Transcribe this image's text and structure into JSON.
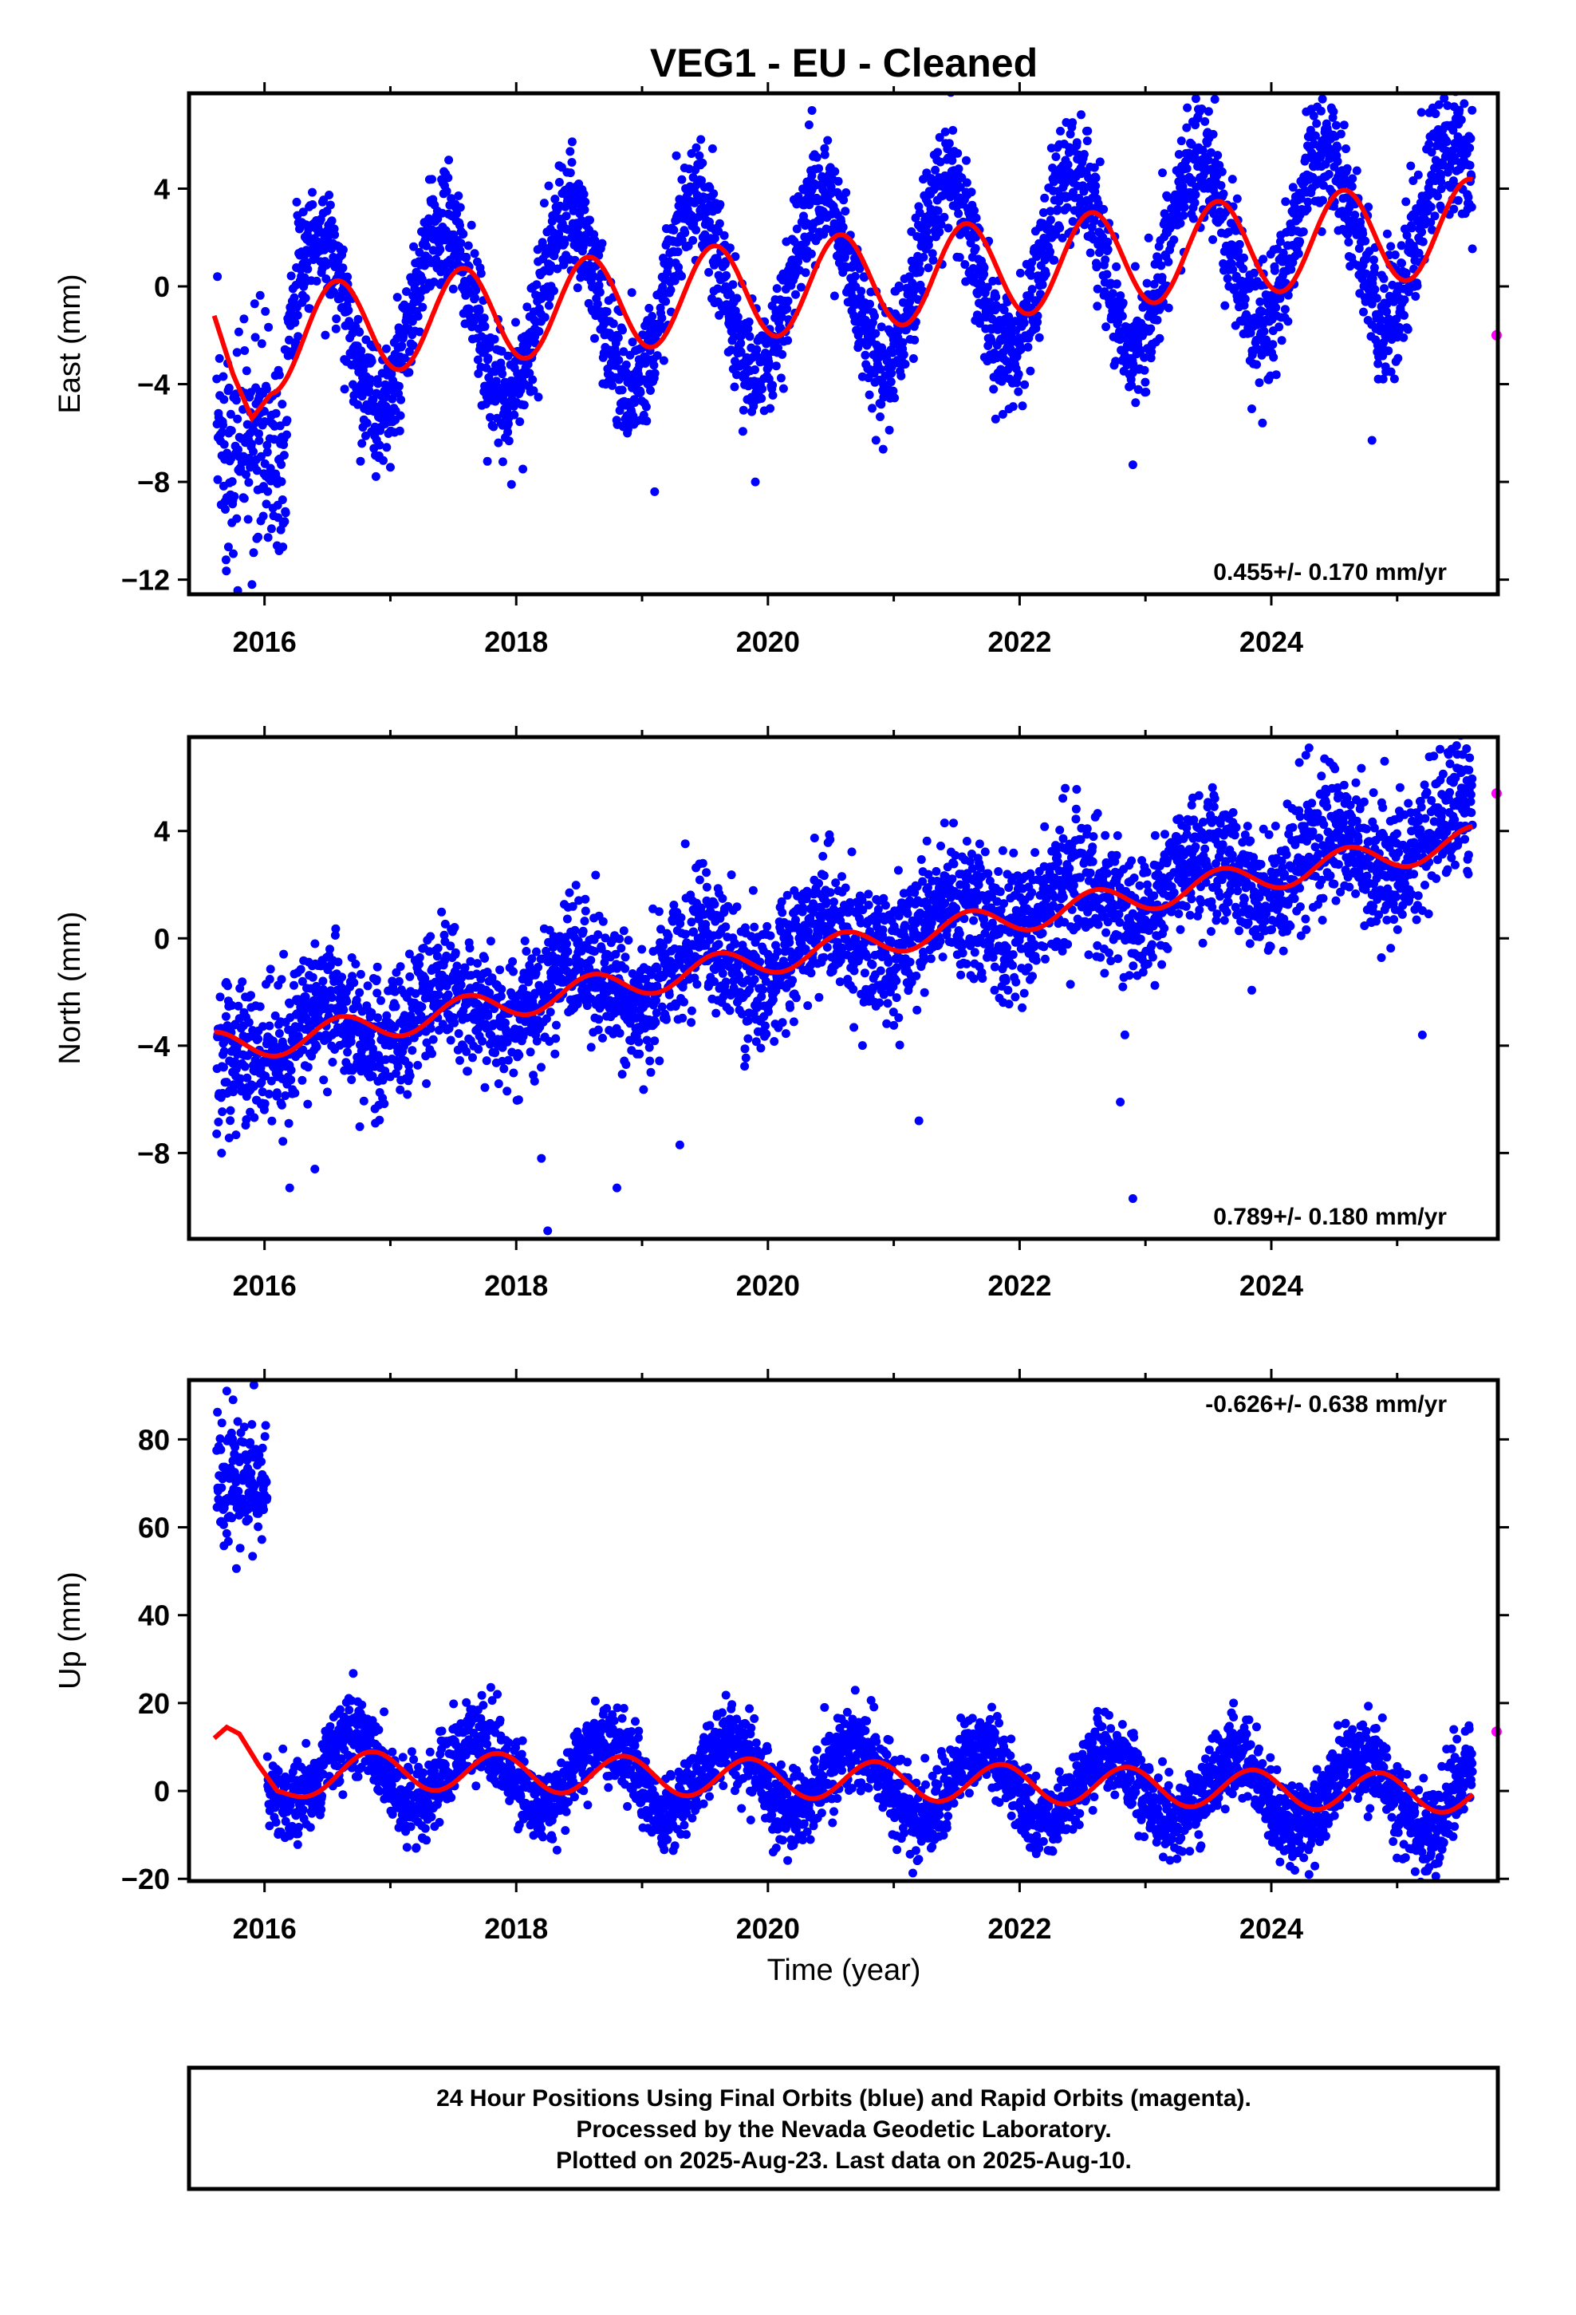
{
  "title": "VEG1  - EU - Cleaned",
  "colors": {
    "final_orbits": "#0000ff",
    "rapid_orbits": "#ff00ff",
    "model": "#ff0000",
    "frame": "#000000"
  },
  "x_axis": {
    "label": "Time (year)",
    "range": [
      2015.4,
      2025.8
    ],
    "ticks": [
      2016,
      2018,
      2020,
      2022,
      2024
    ],
    "tick_labels": [
      "2016",
      "2018",
      "2020",
      "2022",
      "2024"
    ]
  },
  "footer": {
    "lines": [
      "24 Hour Positions Using Final Orbits (blue) and Rapid Orbits (magenta).",
      "Processed by the Nevada Geodetic Laboratory.",
      "Plotted on 2025-Aug-23. Last data on 2025-Aug-10."
    ]
  },
  "chart_data": [
    {
      "type": "scatter",
      "component": "east",
      "ylabel": "East (mm)",
      "ylim": [
        -12.6,
        7.9
      ],
      "yticks": [
        -12,
        -8,
        -4,
        0,
        4
      ],
      "ytick_labels": [
        "−12",
        "−8",
        "−4",
        "0",
        "4"
      ],
      "rate": "0.455+/- 0.170 mm/yr",
      "rate_position": "bottom-right",
      "model": {
        "t0": 2015.6,
        "t1": 2025.6,
        "offset_at_2020": 0.0,
        "trend": 0.455,
        "annual_amp": 3.6,
        "annual_peak": 0.42,
        "early_curve": [
          [
            2015.6,
            -1.2
          ],
          [
            2015.75,
            -3.6
          ],
          [
            2015.9,
            -5.4
          ],
          [
            2016.05,
            -4.4
          ]
        ]
      },
      "scatter_spread": 1.2,
      "early_points": {
        "t0": 2015.62,
        "t1": 2016.18,
        "center": -6.4,
        "spread": 2.4
      },
      "outliers": [
        [
          2015.9,
          -12.2
        ],
        [
          2016.1,
          -7.9
        ],
        [
          2017.0,
          -7.4
        ],
        [
          2019.1,
          -8.4
        ],
        [
          2019.9,
          -8.0
        ],
        [
          2022.9,
          -7.3
        ],
        [
          2024.8,
          -6.3
        ],
        [
          2020.35,
          7.2
        ],
        [
          2025.4,
          7.4
        ]
      ],
      "rapid_points": [
        [
          2025.6,
          -2.0
        ]
      ]
    },
    {
      "type": "scatter",
      "component": "north",
      "ylabel": "North (mm)",
      "ylim": [
        -11.2,
        7.5
      ],
      "yticks": [
        -8,
        -4,
        0,
        4
      ],
      "ytick_labels": [
        "−8",
        "−4",
        "0",
        "4"
      ],
      "rate": "0.789+/- 0.180 mm/yr",
      "rate_position": "bottom-right",
      "model": {
        "t0": 2015.6,
        "t1": 2025.6,
        "offset_at_2020": -0.6,
        "trend": 0.789,
        "annual_amp": 1.0,
        "annual_peak": 0.45,
        "early_curve": []
      },
      "scatter_spread": 1.2,
      "early_points": {
        "t0": 2015.62,
        "t1": 2016.2,
        "center": -4.6,
        "spread": 1.4
      },
      "outliers": [
        [
          2016.2,
          -9.3
        ],
        [
          2016.4,
          -8.6
        ],
        [
          2018.2,
          -8.2
        ],
        [
          2018.25,
          -10.9
        ],
        [
          2018.8,
          -9.3
        ],
        [
          2019.3,
          -7.7
        ],
        [
          2021.2,
          -6.8
        ],
        [
          2022.9,
          -9.7
        ],
        [
          2022.8,
          -6.1
        ],
        [
          2024.3,
          7.1
        ],
        [
          2024.9,
          6.6
        ],
        [
          2025.2,
          -3.6
        ]
      ],
      "rapid_points": [
        [
          2025.6,
          5.4
        ]
      ]
    },
    {
      "type": "scatter",
      "component": "up",
      "ylabel": "Up (mm)",
      "ylim": [
        -20.5,
        93.5
      ],
      "yticks": [
        -20,
        0,
        20,
        40,
        60,
        80
      ],
      "ytick_labels": [
        "−20",
        "0",
        "20",
        "40",
        "60",
        "80"
      ],
      "rate": "-0.626+/- 0.638 mm/yr",
      "rate_position": "top-right",
      "model": {
        "t0": 2015.6,
        "t1": 2025.6,
        "offset_at_2020": 2.7,
        "trend": -0.626,
        "annual_amp": 8.0,
        "annual_peak": 0.7,
        "early_curve": [
          [
            2015.6,
            12.0
          ],
          [
            2015.7,
            14.5
          ],
          [
            2015.8,
            13.0
          ],
          [
            2015.95,
            6.0
          ],
          [
            2016.1,
            0.0
          ]
        ]
      },
      "scatter_spread": 4.5,
      "early_points": {
        "t0": 2015.62,
        "t1": 2016.02,
        "center": 70,
        "spread": 7
      },
      "outliers": [
        [
          2015.7,
          91.0
        ],
        [
          2015.75,
          89.0
        ],
        [
          2016.95,
          18.0
        ],
        [
          2017.85,
          22.0
        ],
        [
          2020.45,
          19.0
        ],
        [
          2023.7,
          20.0
        ],
        [
          2024.3,
          -19.0
        ],
        [
          2025.45,
          14.0
        ]
      ],
      "rapid_points": [
        [
          2025.6,
          13.5
        ]
      ]
    }
  ]
}
